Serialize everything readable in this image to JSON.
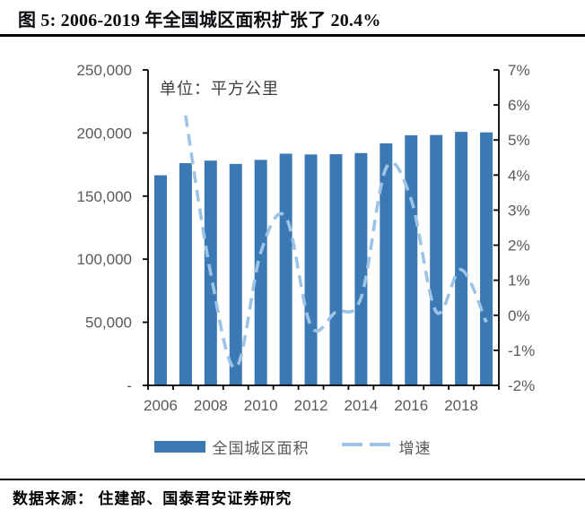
{
  "title": {
    "text": "图 5:  2006-2019 年全国城区面积扩张了 20.4%"
  },
  "footer": {
    "text": "数据来源： 住建部、国泰君安证券研究"
  },
  "colors": {
    "bar": "#3B79B5",
    "line": "#9DC3E6",
    "axis": "#000000",
    "tick_label": "#595959"
  },
  "chart_data": {
    "type": "bar",
    "subtype": "bar-with-dashed-line-secondary-axis",
    "title": "图 5:  2006-2019 年全国城区面积扩张了 20.4%",
    "unit_annotation": "单位：平方公里",
    "categories": [
      "2006",
      "2007",
      "2008",
      "2009",
      "2010",
      "2011",
      "2012",
      "2013",
      "2014",
      "2015",
      "2016",
      "2017",
      "2018",
      "2019"
    ],
    "series": [
      {
        "name": "全国城区面积",
        "type": "bar",
        "axis": "left",
        "color": "#3B79B5",
        "values": [
          166500,
          176100,
          178100,
          175500,
          178700,
          183600,
          183000,
          183200,
          184100,
          191800,
          198200,
          198400,
          200900,
          200500
        ]
      },
      {
        "name": "增速",
        "type": "line",
        "style": "dashed",
        "axis": "right",
        "color": "#9DC3E6",
        "values": [
          null,
          5.7,
          1.2,
          -1.5,
          1.8,
          2.8,
          -0.3,
          0.1,
          0.5,
          4.2,
          3.3,
          0.1,
          1.3,
          -0.2
        ]
      }
    ],
    "left_axis": {
      "min": 0,
      "max": 250000,
      "tick_labels": [
        "-",
        "50,000",
        "100,000",
        "150,000",
        "200,000",
        "250,000"
      ]
    },
    "right_axis": {
      "min": -2,
      "max": 7,
      "tick_labels": [
        "-2%",
        "-1%",
        "0%",
        "1%",
        "2%",
        "3%",
        "4%",
        "5%",
        "6%",
        "7%"
      ]
    },
    "x_tick_labels": [
      "2006",
      "2008",
      "2010",
      "2012",
      "2014",
      "2016",
      "2018"
    ],
    "grid": false,
    "legend_position": "bottom"
  }
}
